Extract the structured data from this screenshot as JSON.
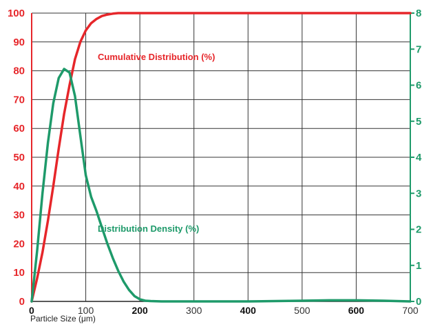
{
  "chart_data": {
    "type": "line",
    "title": "",
    "xlabel": "Particle Size  (μm)",
    "xlim": [
      0,
      700
    ],
    "ylim_left": [
      0,
      100
    ],
    "ylim_right": [
      0,
      8
    ],
    "x_ticks": [
      {
        "value": 0,
        "label": "0",
        "bold": true
      },
      {
        "value": 100,
        "label": "100",
        "bold": false
      },
      {
        "value": 200,
        "label": "200",
        "bold": true
      },
      {
        "value": 300,
        "label": "300",
        "bold": false
      },
      {
        "value": 400,
        "label": "400",
        "bold": true
      },
      {
        "value": 500,
        "label": "500",
        "bold": false
      },
      {
        "value": 600,
        "label": "600",
        "bold": true
      },
      {
        "value": 700,
        "label": "700",
        "bold": false
      }
    ],
    "y_left_ticks": [
      "0",
      "10",
      "20",
      "30",
      "40",
      "50",
      "60",
      "70",
      "80",
      "90",
      "100"
    ],
    "y_right_ticks": [
      "0",
      "1",
      "2",
      "3",
      "4",
      "5",
      "6",
      "7",
      "8"
    ],
    "grid": true,
    "series": [
      {
        "name": "Cumulative Distribution (%)",
        "axis": "left",
        "color": "#e6262a",
        "x": [
          0,
          10,
          20,
          30,
          40,
          50,
          60,
          70,
          80,
          90,
          100,
          110,
          120,
          130,
          140,
          150,
          160,
          180,
          200,
          300,
          400,
          500,
          600,
          700
        ],
        "y": [
          0,
          8,
          17,
          28,
          40,
          53,
          65,
          75,
          84,
          90,
          94,
          96.5,
          98,
          99,
          99.5,
          99.8,
          100,
          100,
          100,
          100,
          100,
          100,
          100,
          100
        ]
      },
      {
        "name": "Distribution Density (%)",
        "axis": "right",
        "color": "#1e9a6a",
        "x": [
          0,
          10,
          20,
          30,
          40,
          50,
          60,
          70,
          80,
          90,
          100,
          110,
          120,
          130,
          140,
          150,
          160,
          170,
          180,
          190,
          200,
          210,
          220,
          240,
          260,
          300,
          350,
          400,
          450,
          500,
          550,
          600,
          650,
          700
        ],
        "y": [
          0,
          1.4,
          3.0,
          4.4,
          5.5,
          6.2,
          6.45,
          6.35,
          5.7,
          4.6,
          3.5,
          2.9,
          2.5,
          2.05,
          1.6,
          1.2,
          0.85,
          0.55,
          0.32,
          0.15,
          0.06,
          0.02,
          0.01,
          0,
          0,
          0,
          0,
          0,
          0.01,
          0.02,
          0.03,
          0.03,
          0.02,
          0
        ]
      }
    ]
  }
}
